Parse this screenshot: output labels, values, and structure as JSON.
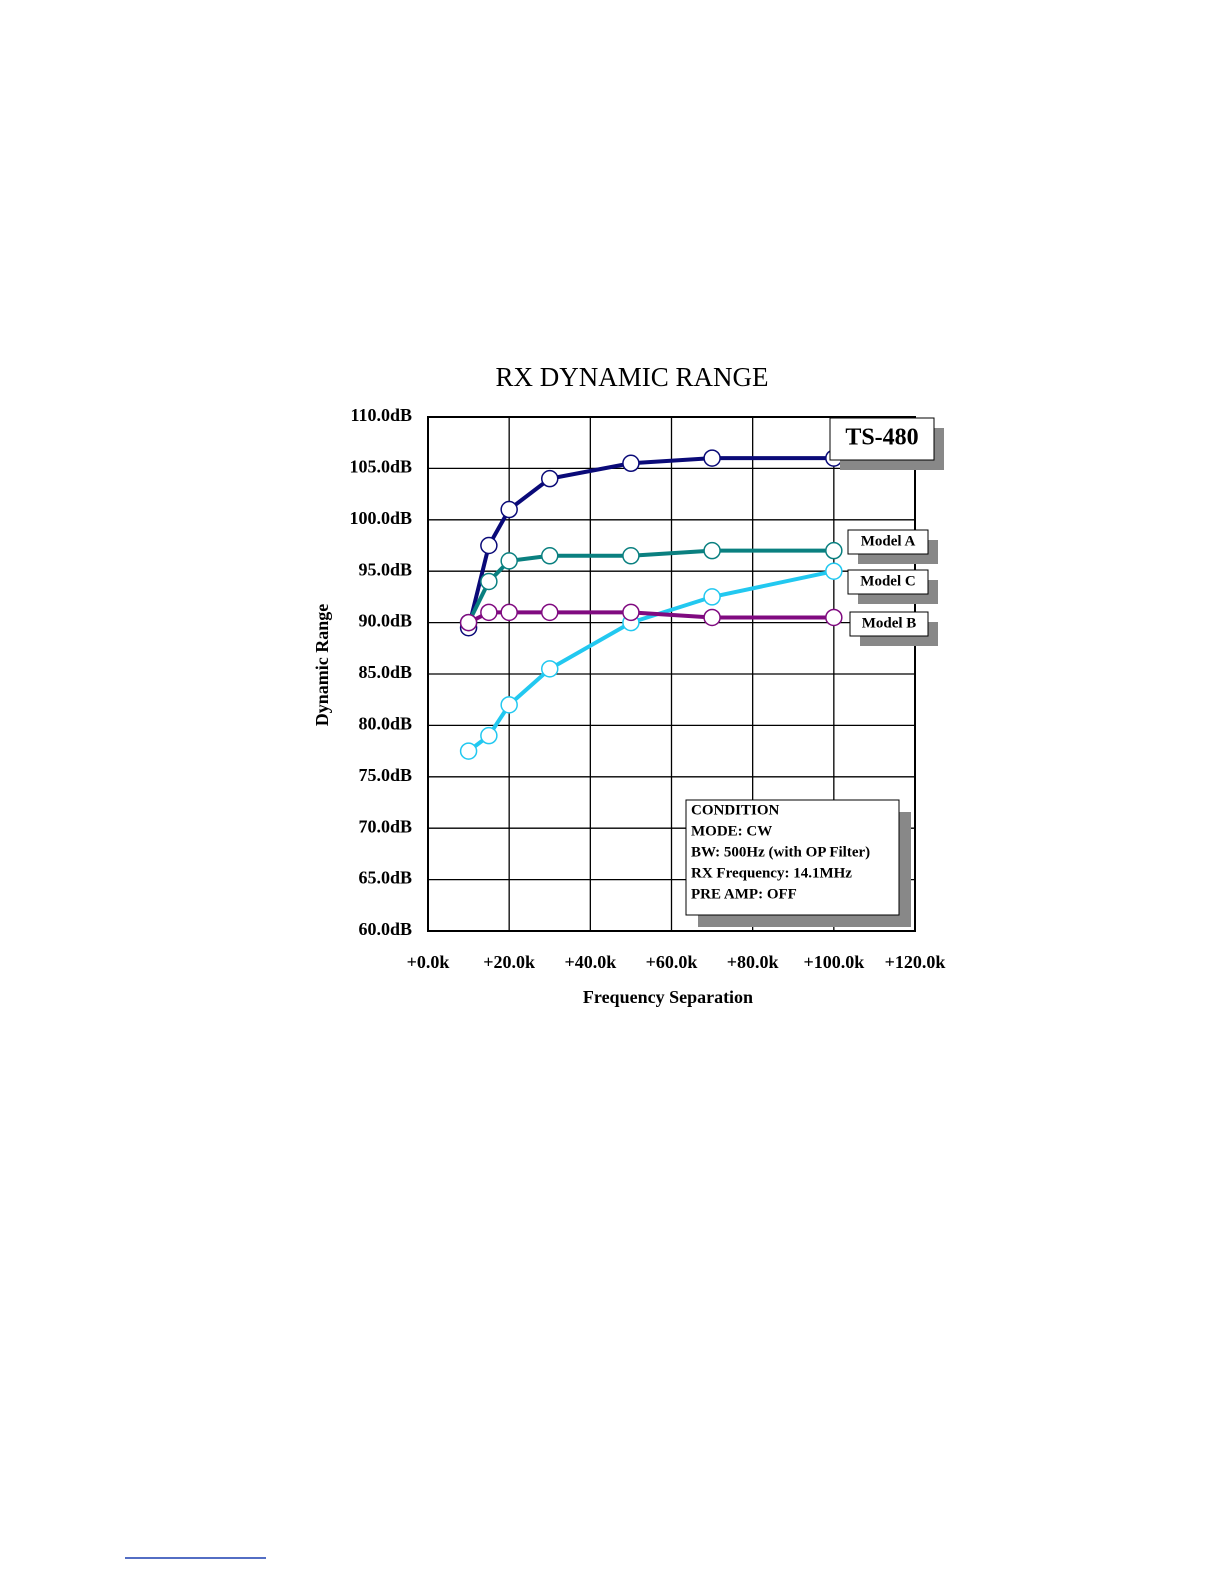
{
  "chart_data": {
    "type": "line",
    "title": "RX DYNAMIC RANGE",
    "x_label": "Frequency Separation",
    "y_label": "Dynamic Range",
    "x": [
      10,
      15,
      20,
      30,
      50,
      70,
      100
    ],
    "series": [
      {
        "name": "TS-480",
        "color": "#0a0a78",
        "values": [
          89.5,
          97.5,
          101,
          104,
          105.5,
          106,
          106
        ]
      },
      {
        "name": "Model A",
        "color": "#0a8080",
        "values": [
          90,
          94,
          96,
          96.5,
          96.5,
          97,
          97
        ]
      },
      {
        "name": "Model C",
        "color": "#22c8f0",
        "values": [
          77.5,
          79,
          82,
          85.5,
          90,
          92.5,
          95
        ]
      },
      {
        "name": "Model B",
        "color": "#800a80",
        "values": [
          90,
          91,
          91,
          91,
          91,
          90.5,
          90.5
        ]
      }
    ],
    "xlim": [
      0,
      120
    ],
    "xticks": [
      {
        "value": 0,
        "label": "+0.0k"
      },
      {
        "value": 20,
        "label": "+20.0k"
      },
      {
        "value": 40,
        "label": "+40.0k"
      },
      {
        "value": 60,
        "label": "+60.0k"
      },
      {
        "value": 80,
        "label": "+80.0k"
      },
      {
        "value": 100,
        "label": "+100.0k"
      },
      {
        "value": 120,
        "label": "+120.0k"
      }
    ],
    "ylim": [
      60,
      110
    ],
    "yticks": [
      {
        "value": 60,
        "label": "60.0dB"
      },
      {
        "value": 65,
        "label": "65.0dB"
      },
      {
        "value": 70,
        "label": "70.0dB"
      },
      {
        "value": 75,
        "label": "75.0dB"
      },
      {
        "value": 80,
        "label": "80.0dB"
      },
      {
        "value": 85,
        "label": "85.0dB"
      },
      {
        "value": 90,
        "label": "90.0dB"
      },
      {
        "value": 95,
        "label": "95.0dB"
      },
      {
        "value": 100,
        "label": "100.0dB"
      },
      {
        "value": 105,
        "label": "105.0dB"
      },
      {
        "value": 110,
        "label": "110.0dB"
      }
    ],
    "grid": true,
    "annotations": [
      "CONDITION",
      "MODE: CW",
      "BW: 500Hz (with OP Filter)",
      "RX Frequency: 14.1MHz",
      "PRE AMP: OFF"
    ]
  }
}
